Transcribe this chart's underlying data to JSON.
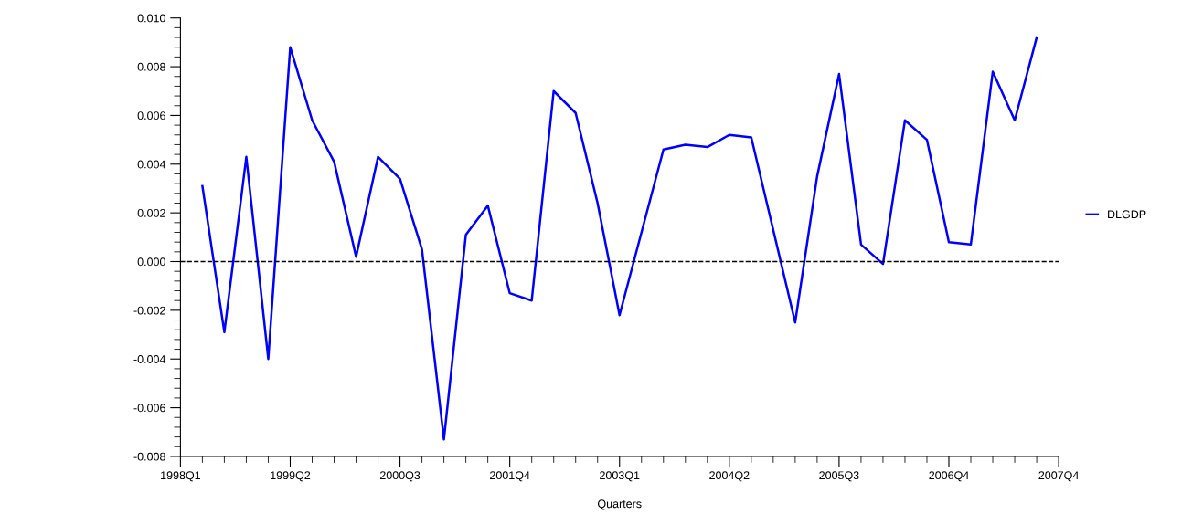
{
  "chart_data": {
    "type": "line",
    "xlabel": "Quarters",
    "categories": [
      "1998Q1",
      null,
      null,
      null,
      null,
      "1999Q2",
      null,
      null,
      null,
      null,
      "2000Q3",
      null,
      null,
      null,
      null,
      "2001Q4",
      null,
      null,
      null,
      null,
      "2003Q1",
      null,
      null,
      null,
      null,
      "2004Q2",
      null,
      null,
      null,
      null,
      "2005Q3",
      null,
      null,
      null,
      null,
      "2006Q4",
      null,
      null,
      null,
      null,
      "2007Q4"
    ],
    "series": [
      {
        "name": "DLGDP",
        "color": "#0000ff",
        "values": [
          null,
          0.0031,
          -0.0029,
          0.0043,
          -0.004,
          0.0088,
          0.0058,
          0.0041,
          0.0002,
          0.0043,
          0.0034,
          0.0005,
          -0.0073,
          0.0011,
          0.0023,
          -0.0013,
          -0.0016,
          0.007,
          0.0061,
          0.0024,
          -0.0022,
          0.0012,
          0.0046,
          0.0048,
          0.0047,
          0.0052,
          0.0051,
          0.0013,
          -0.0025,
          0.0035,
          0.0077,
          0.0007,
          -0.0001,
          0.0058,
          0.005,
          0.0008,
          0.0007,
          0.0078,
          0.0058,
          0.0092,
          null
        ]
      }
    ],
    "ylim": [
      -0.008,
      0.01
    ],
    "yticks": [
      {
        "value": -0.008,
        "label": "-0.008"
      },
      {
        "value": -0.0076,
        "label": null
      },
      {
        "value": -0.0072,
        "label": null
      },
      {
        "value": -0.0068,
        "label": null
      },
      {
        "value": -0.0064,
        "label": null
      },
      {
        "value": -0.006,
        "label": "-0.006"
      },
      {
        "value": -0.0056,
        "label": null
      },
      {
        "value": -0.0052,
        "label": null
      },
      {
        "value": -0.0048,
        "label": null
      },
      {
        "value": -0.0044,
        "label": null
      },
      {
        "value": -0.004,
        "label": "-0.004"
      },
      {
        "value": -0.0036,
        "label": null
      },
      {
        "value": -0.0032,
        "label": null
      },
      {
        "value": -0.0028,
        "label": null
      },
      {
        "value": -0.0024,
        "label": null
      },
      {
        "value": -0.002,
        "label": "-0.002"
      },
      {
        "value": -0.0016,
        "label": null
      },
      {
        "value": -0.0012,
        "label": null
      },
      {
        "value": -0.0008,
        "label": null
      },
      {
        "value": -0.0004,
        "label": null
      },
      {
        "value": 0.0,
        "label": "0.000"
      },
      {
        "value": 0.0004,
        "label": null
      },
      {
        "value": 0.0008,
        "label": null
      },
      {
        "value": 0.0012,
        "label": null
      },
      {
        "value": 0.0016,
        "label": null
      },
      {
        "value": 0.002,
        "label": "0.002"
      },
      {
        "value": 0.0024,
        "label": null
      },
      {
        "value": 0.0028,
        "label": null
      },
      {
        "value": 0.0032,
        "label": null
      },
      {
        "value": 0.0036,
        "label": null
      },
      {
        "value": 0.004,
        "label": "0.004"
      },
      {
        "value": 0.0044,
        "label": null
      },
      {
        "value": 0.0048,
        "label": null
      },
      {
        "value": 0.0052,
        "label": null
      },
      {
        "value": 0.0056,
        "label": null
      },
      {
        "value": 0.006,
        "label": "0.006"
      },
      {
        "value": 0.0064,
        "label": null
      },
      {
        "value": 0.0068,
        "label": null
      },
      {
        "value": 0.0072,
        "label": null
      },
      {
        "value": 0.0076,
        "label": null
      },
      {
        "value": 0.008,
        "label": "0.008"
      },
      {
        "value": 0.0084,
        "label": null
      },
      {
        "value": 0.0088,
        "label": null
      },
      {
        "value": 0.0092,
        "label": null
      },
      {
        "value": 0.0096,
        "label": null
      },
      {
        "value": 0.01,
        "label": "0.010"
      }
    ],
    "ref_lines": [
      {
        "axis": "y",
        "value": 0.0,
        "color": "#000000",
        "line_style": "dashed"
      }
    ],
    "grid": false,
    "legend": "right",
    "line_style": "solid",
    "marker": "none"
  }
}
